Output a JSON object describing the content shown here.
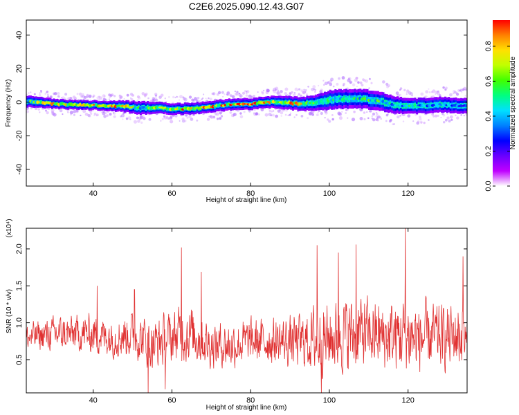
{
  "title": "C2E6.2025.090.12.43.G07",
  "colors": {
    "snr_line": "#e03030",
    "colormap": [
      "#ffffff",
      "#c000ff",
      "#6a00ff",
      "#0000ff",
      "#0080ff",
      "#00e0ff",
      "#00ff80",
      "#40ff00",
      "#c0ff00",
      "#ffe000",
      "#ff8000",
      "#ff0000"
    ]
  },
  "chart_data": [
    {
      "type": "heatmap",
      "name": "spectrogram",
      "xlabel": "Height of straight line (km)",
      "ylabel": "Frequency (Hz)",
      "xlim": [
        23,
        135
      ],
      "ylim": [
        -50,
        49
      ],
      "xticks": [
        40,
        60,
        80,
        100,
        120
      ],
      "yticks": [
        -40,
        -20,
        0,
        20,
        40
      ],
      "colorbar": {
        "label": "Normalized spectral amplitude",
        "range": [
          0,
          0.95
        ],
        "ticks": [
          0.0,
          0.2,
          0.4,
          0.6,
          0.8
        ]
      },
      "ridge": {
        "x": [
          24,
          30,
          36,
          42,
          48,
          52,
          56,
          60,
          64,
          68,
          72,
          76,
          80,
          84,
          88,
          92,
          96,
          100,
          104,
          108,
          112,
          116,
          120,
          124,
          128,
          132,
          135
        ],
        "freq": [
          0.5,
          -1,
          -1.5,
          -2,
          -2.5,
          -3.5,
          -3,
          -4,
          -4,
          -3,
          -2,
          -1,
          -1,
          0,
          0,
          -1,
          -0.5,
          1.5,
          2,
          2,
          1,
          -1.5,
          -2.5,
          -2,
          -1.5,
          -2,
          -2
        ],
        "spread": [
          3,
          2.5,
          2.5,
          2.5,
          3,
          3.5,
          3,
          3,
          3,
          3,
          3,
          3,
          3,
          3,
          3.5,
          3.5,
          4,
          5,
          5,
          5,
          5,
          4.5,
          4,
          4,
          4,
          4,
          4
        ],
        "amplitude": [
          0.6,
          0.9,
          0.85,
          0.8,
          0.9,
          0.5,
          0.7,
          0.8,
          0.9,
          0.85,
          0.85,
          0.9,
          0.9,
          0.9,
          0.85,
          0.8,
          0.6,
          0.55,
          0.55,
          0.55,
          0.6,
          0.5,
          0.5,
          0.45,
          0.4,
          0.4,
          0.35
        ]
      }
    },
    {
      "type": "line",
      "name": "snr",
      "xlabel": "Height of straight line (km)",
      "ylabel": "SNR (10 * v/v)",
      "multiplier_label": "(x10⁴)",
      "xlim": [
        23,
        135
      ],
      "ylim": [
        0.05,
        2.28
      ],
      "xticks": [
        40,
        60,
        80,
        100,
        120
      ],
      "yticks": [
        0.5,
        1.0,
        1.5,
        2.0
      ],
      "envelope": {
        "x": [
          23,
          30,
          40,
          45,
          50,
          55,
          60,
          62,
          65,
          68,
          70,
          75,
          80,
          85,
          90,
          95,
          97,
          100,
          105,
          107,
          110,
          115,
          119,
          122,
          125,
          130,
          134,
          135
        ],
        "mean": [
          0.8,
          0.85,
          0.85,
          0.8,
          0.85,
          0.7,
          0.8,
          0.85,
          0.85,
          0.75,
          0.7,
          0.7,
          0.75,
          0.75,
          0.75,
          0.75,
          0.8,
          0.8,
          0.85,
          0.85,
          0.85,
          0.8,
          0.85,
          0.8,
          0.8,
          0.8,
          0.85,
          0.6
        ],
        "amp": [
          0.25,
          0.3,
          0.35,
          0.35,
          0.4,
          0.45,
          0.45,
          0.5,
          0.5,
          0.45,
          0.4,
          0.4,
          0.4,
          0.4,
          0.45,
          0.5,
          0.7,
          0.6,
          0.65,
          0.7,
          0.6,
          0.6,
          0.7,
          0.65,
          0.6,
          0.55,
          0.6,
          0.5
        ]
      },
      "peaks": [
        {
          "x": 62.4,
          "y": 2.02
        },
        {
          "x": 67.5,
          "y": 1.69
        },
        {
          "x": 96.9,
          "y": 2.05
        },
        {
          "x": 102.3,
          "y": 1.95
        },
        {
          "x": 106.8,
          "y": 2.06
        },
        {
          "x": 119.3,
          "y": 2.28
        },
        {
          "x": 134.0,
          "y": 1.9
        },
        {
          "x": 41.0,
          "y": 1.5
        },
        {
          "x": 50.5,
          "y": 1.45
        },
        {
          "x": 54.0,
          "y": 0.05
        },
        {
          "x": 58.3,
          "y": 0.1
        },
        {
          "x": 98.0,
          "y": 0.05
        }
      ]
    }
  ]
}
